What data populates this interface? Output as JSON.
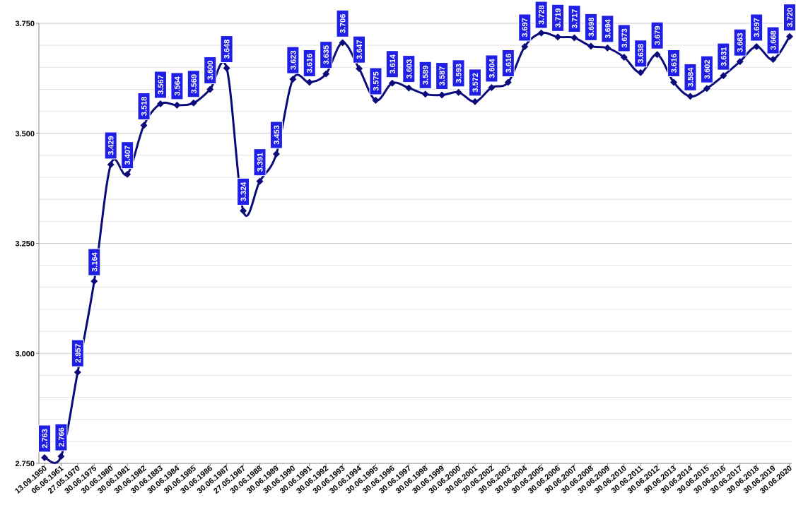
{
  "chart_data": {
    "type": "line",
    "categories": [
      "13.09.1950",
      "06.06.1961",
      "27.05.1970",
      "30.06.1975",
      "30.06.1980",
      "30.06.1981",
      "30.06.1982",
      "30.06.1883",
      "30.06.1984",
      "30.06.1985",
      "30.06.1986",
      "30.06.1987",
      "27.05.1987",
      "30.06.1988",
      "30.06.1989",
      "30.06.1990",
      "30.06.1991",
      "30.06.1992",
      "30.06.1993",
      "30.06.1994",
      "30.06.1995",
      "30.06.1996",
      "30.06.1997",
      "30.06.1998",
      "30.06.1999",
      "30.06.2000",
      "30.06.2001",
      "30.06.2002",
      "30.06.2003",
      "30.06.2004",
      "30.06.2005",
      "30.06.2006",
      "30.06.2007",
      "30.06.2008",
      "30.06.2009",
      "30.06.2010",
      "30.06.2011",
      "30.06.2012",
      "30.06.2013",
      "30.06.2014",
      "30.06.2015",
      "30.06.2016",
      "30.06.2017",
      "30.06.2018",
      "30.06.2019",
      "30.06.2020"
    ],
    "values": [
      2.763,
      2.766,
      2.957,
      3.164,
      3.429,
      3.407,
      3.518,
      3.567,
      3.564,
      3.569,
      3.6,
      3.648,
      3.324,
      3.391,
      3.453,
      3.623,
      3.616,
      3.635,
      3.706,
      3.647,
      3.575,
      3.614,
      3.603,
      3.589,
      3.587,
      3.593,
      3.572,
      3.604,
      3.616,
      3.697,
      3.728,
      3.719,
      3.717,
      3.698,
      3.694,
      3.673,
      3.638,
      3.679,
      3.616,
      3.584,
      3.602,
      3.631,
      3.663,
      3.697,
      3.668,
      3.72
    ],
    "value_labels": [
      "2.763",
      "2.766",
      "2.957",
      "3.164",
      "3.429",
      "3.407",
      "3.518",
      "3.567",
      "3.564",
      "3.569",
      "3.600",
      "3.648",
      "3.324",
      "3.391",
      "3.453",
      "3.623",
      "3.616",
      "3.635",
      "3.706",
      "3.647",
      "3.575",
      "3.614",
      "3.603",
      "3.589",
      "3.587",
      "3.593",
      "3.572",
      "3.604",
      "3.616",
      "3.697",
      "3.728",
      "3.719",
      "3.717",
      "3.698",
      "3.694",
      "3.673",
      "3.638",
      "3.679",
      "3.616",
      "3.584",
      "3.602",
      "3.631",
      "3.663",
      "3.697",
      "3.668",
      "3.720"
    ],
    "color": "#0a0a7a",
    "label_color": "#1f1fe6",
    "smooth": true,
    "ylim": [
      2.75,
      3.75
    ],
    "yticks": [
      {
        "value": 2.75,
        "label": "2.750"
      },
      {
        "value": 3.0,
        "label": "3.000"
      },
      {
        "value": 3.25,
        "label": "3.250"
      },
      {
        "value": 3.5,
        "label": "3.500"
      },
      {
        "value": 3.75,
        "label": "3.750"
      }
    ],
    "minor_yticks": [
      2.8,
      2.85,
      2.9,
      2.95,
      3.05,
      3.1,
      3.15,
      3.2,
      3.3,
      3.35,
      3.4,
      3.45,
      3.55,
      3.6,
      3.65,
      3.7
    ],
    "grid": true
  }
}
